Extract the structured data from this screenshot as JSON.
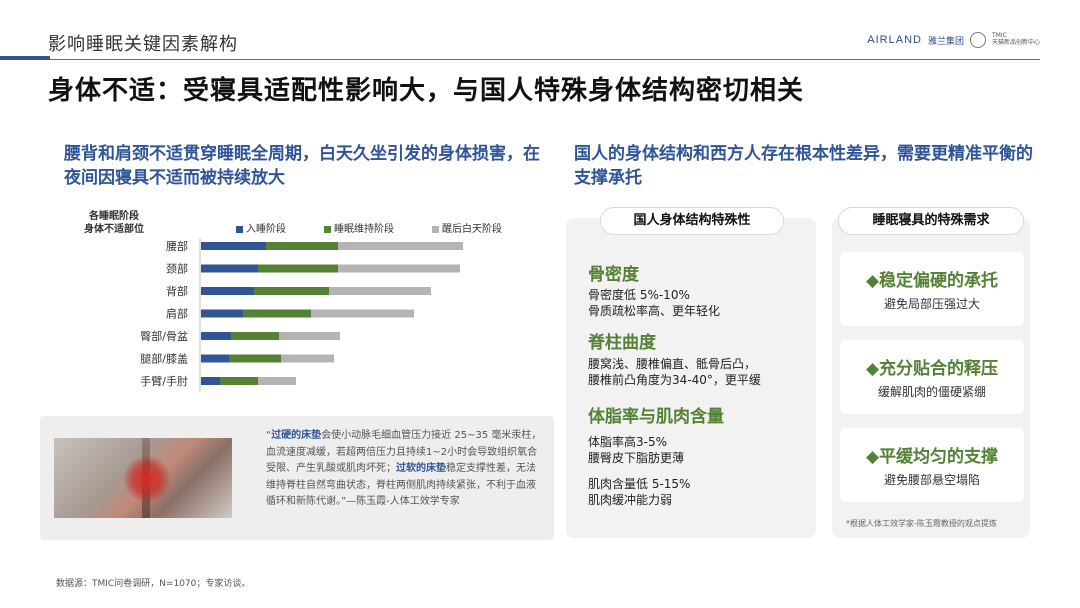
{
  "header": {
    "section_title": "影响睡眠关键因素解构",
    "brand_en": "AIRLAND",
    "brand_cn": "雅兰集团",
    "tmic_logo": "TMIC",
    "tmic_name": "天猫新品创新中心"
  },
  "main_title": "身体不适：受寝具适配性影响大，与国人特殊身体结构密切相关",
  "left": {
    "heading": "腰背和肩颈不适贯穿睡眠全周期，白天久坐引发的身体损害，在夜间因寝具不适而被持续放大",
    "chart_category_title_line1": "各睡眠阶段",
    "chart_category_title_line2": "身体不适部位",
    "quote": {
      "open": "“",
      "hl1": "过硬的床垫",
      "t1": "会使小动脉毛细血管压力接近 25~35 毫米汞柱，血流速度减缓，若超两倍压力且持续1~2小时会导致组织氧合受限、产生乳酸或肌肉坏死；",
      "hl2": "过软的床垫",
      "t2": "稳定支撑性差，无法维持脊柱自然弯曲状态，脊柱两侧肌肉持续紧张，不利于血液循环和新陈代谢。”—陈玉霞-人体工效学专家"
    }
  },
  "chart_data": {
    "type": "bar",
    "orientation": "horizontal",
    "stacked": true,
    "categories": [
      "腰部",
      "颈部",
      "背部",
      "肩部",
      "臀部/骨盆",
      "腿部/膝盖",
      "手臂/手肘"
    ],
    "series": [
      {
        "name": "入睡阶段",
        "color": "#2f5597",
        "values": [
          65,
          57,
          53,
          42,
          30,
          28,
          19
        ]
      },
      {
        "name": "睡眠维持阶段",
        "color": "#548235",
        "values": [
          72,
          80,
          75,
          68,
          48,
          52,
          38
        ]
      },
      {
        "name": "醒后白天阶段",
        "color": "#b4b4b4",
        "values": [
          125,
          122,
          102,
          103,
          61,
          53,
          38
        ]
      }
    ],
    "legend_position": "top",
    "grid": false
  },
  "right": {
    "heading": "国人的身体结构和西方人存在根本性差异，需要更精准平衡的支撑承托",
    "panel1_title": "国人身体结构特殊性",
    "features": [
      {
        "title": "骨密度",
        "lines": [
          "骨密度低 5%-10%",
          "骨质疏松率高、更年轻化"
        ]
      },
      {
        "title": "脊柱曲度",
        "lines": [
          "腰窝浅、腰椎偏直、骶骨后凸，",
          "腰椎前凸角度为34-40°，更平缓"
        ]
      },
      {
        "title": "体脂率与肌肉含量",
        "lines": [
          "体脂率高3-5%",
          "腰臀皮下脂肪更薄"
        ],
        "lines2": [
          "肌肉含量低 5-15%",
          "肌肉缓冲能力弱"
        ]
      }
    ],
    "panel2_title": "睡眠寝具的特殊需求",
    "needs": [
      {
        "title": "◆稳定偏硬的承托",
        "desc": "避免局部压强过大"
      },
      {
        "title": "◆充分贴合的释压",
        "desc": "缓解肌肉的僵硬紧绷"
      },
      {
        "title": "◆平缓均匀的支撑",
        "desc": "避免腰部悬空塌陷"
      }
    ],
    "footnote": "*根据人体工效学家-陈玉霞教授的观点提炼"
  },
  "source": "数据源：TMIC问卷调研，N=1070；专家访谈。"
}
